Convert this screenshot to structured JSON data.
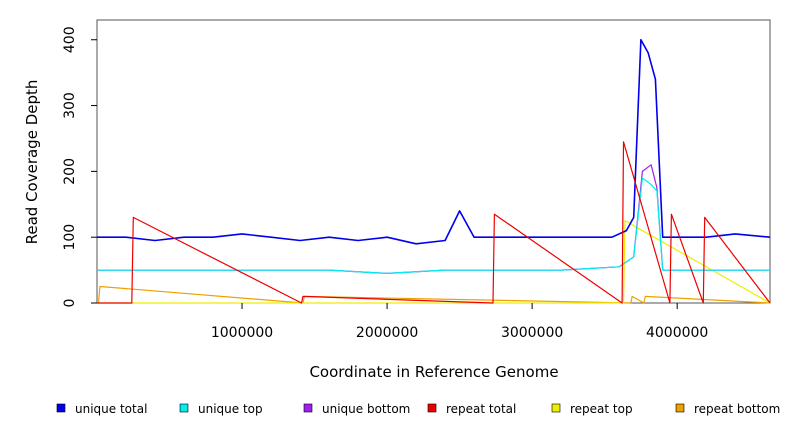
{
  "chart_data": {
    "type": "line",
    "xlabel": "Coordinate in Reference Genome",
    "ylabel": "Read Coverage Depth",
    "xlim": [
      0,
      4640000
    ],
    "ylim": [
      0,
      430
    ],
    "x_ticks": [
      {
        "value": 1000000,
        "label": "1000000"
      },
      {
        "value": 2000000,
        "label": "2000000"
      },
      {
        "value": 3000000,
        "label": "3000000"
      },
      {
        "value": 4000000,
        "label": "4000000"
      }
    ],
    "y_ticks": [
      {
        "value": 0,
        "label": "0"
      },
      {
        "value": 100,
        "label": "100"
      },
      {
        "value": 200,
        "label": "200"
      },
      {
        "value": 300,
        "label": "300"
      },
      {
        "value": 400,
        "label": "400"
      }
    ],
    "grid": false,
    "legend_position": "bottom",
    "series": [
      {
        "name": "unique total",
        "color": "#0000ee",
        "x": [
          0,
          200000,
          400000,
          600000,
          800000,
          1000000,
          1200000,
          1400000,
          1600000,
          1800000,
          2000000,
          2200000,
          2400000,
          2500000,
          2600000,
          2800000,
          3000000,
          3200000,
          3400000,
          3550000,
          3650000,
          3700000,
          3750000,
          3800000,
          3850000,
          3900000,
          4000000,
          4200000,
          4400000,
          4640000
        ],
        "y": [
          100,
          100,
          95,
          100,
          100,
          105,
          100,
          95,
          100,
          95,
          100,
          90,
          95,
          140,
          100,
          100,
          100,
          100,
          100,
          100,
          110,
          130,
          400,
          380,
          340,
          100,
          100,
          100,
          105,
          100
        ]
      },
      {
        "name": "unique top",
        "color": "#00eeee",
        "x": [
          0,
          400000,
          800000,
          1200000,
          1600000,
          2000000,
          2400000,
          2800000,
          3200000,
          3600000,
          3700000,
          3760000,
          3820000,
          3860000,
          3900000,
          4200000,
          4640000
        ],
        "y": [
          50,
          50,
          50,
          50,
          50,
          45,
          50,
          50,
          50,
          55,
          70,
          190,
          180,
          170,
          50,
          50,
          50
        ]
      },
      {
        "name": "unique bottom",
        "color": "#a020f0",
        "x": [
          0,
          400000,
          800000,
          1200000,
          1600000,
          2000000,
          2400000,
          2800000,
          3200000,
          3600000,
          3700000,
          3760000,
          3820000,
          3860000,
          3900000,
          4200000,
          4640000
        ],
        "y": [
          50,
          50,
          50,
          50,
          50,
          45,
          50,
          50,
          50,
          55,
          70,
          200,
          210,
          175,
          50,
          50,
          50
        ]
      },
      {
        "name": "repeat total",
        "color": "#ee0000",
        "x": [
          0,
          240000,
          250000,
          1410000,
          1420000,
          2730000,
          2740000,
          3620000,
          3630000,
          3950000,
          3960000,
          4180000,
          4190000,
          4640000
        ],
        "y": [
          0,
          0,
          130,
          0,
          10,
          0,
          135,
          0,
          245,
          0,
          135,
          0,
          130,
          0
        ]
      },
      {
        "name": "repeat top",
        "color": "#eeee00",
        "x": [
          0,
          3630000,
          3640000,
          4640000
        ],
        "y": [
          0,
          0,
          125,
          0
        ]
      },
      {
        "name": "repeat bottom",
        "color": "#eea000",
        "x": [
          0,
          10000,
          20000,
          1420000,
          1430000,
          3680000,
          3690000,
          3770000,
          3780000,
          4640000
        ],
        "y": [
          0,
          0,
          25,
          0,
          10,
          0,
          10,
          0,
          10,
          0
        ]
      }
    ]
  }
}
